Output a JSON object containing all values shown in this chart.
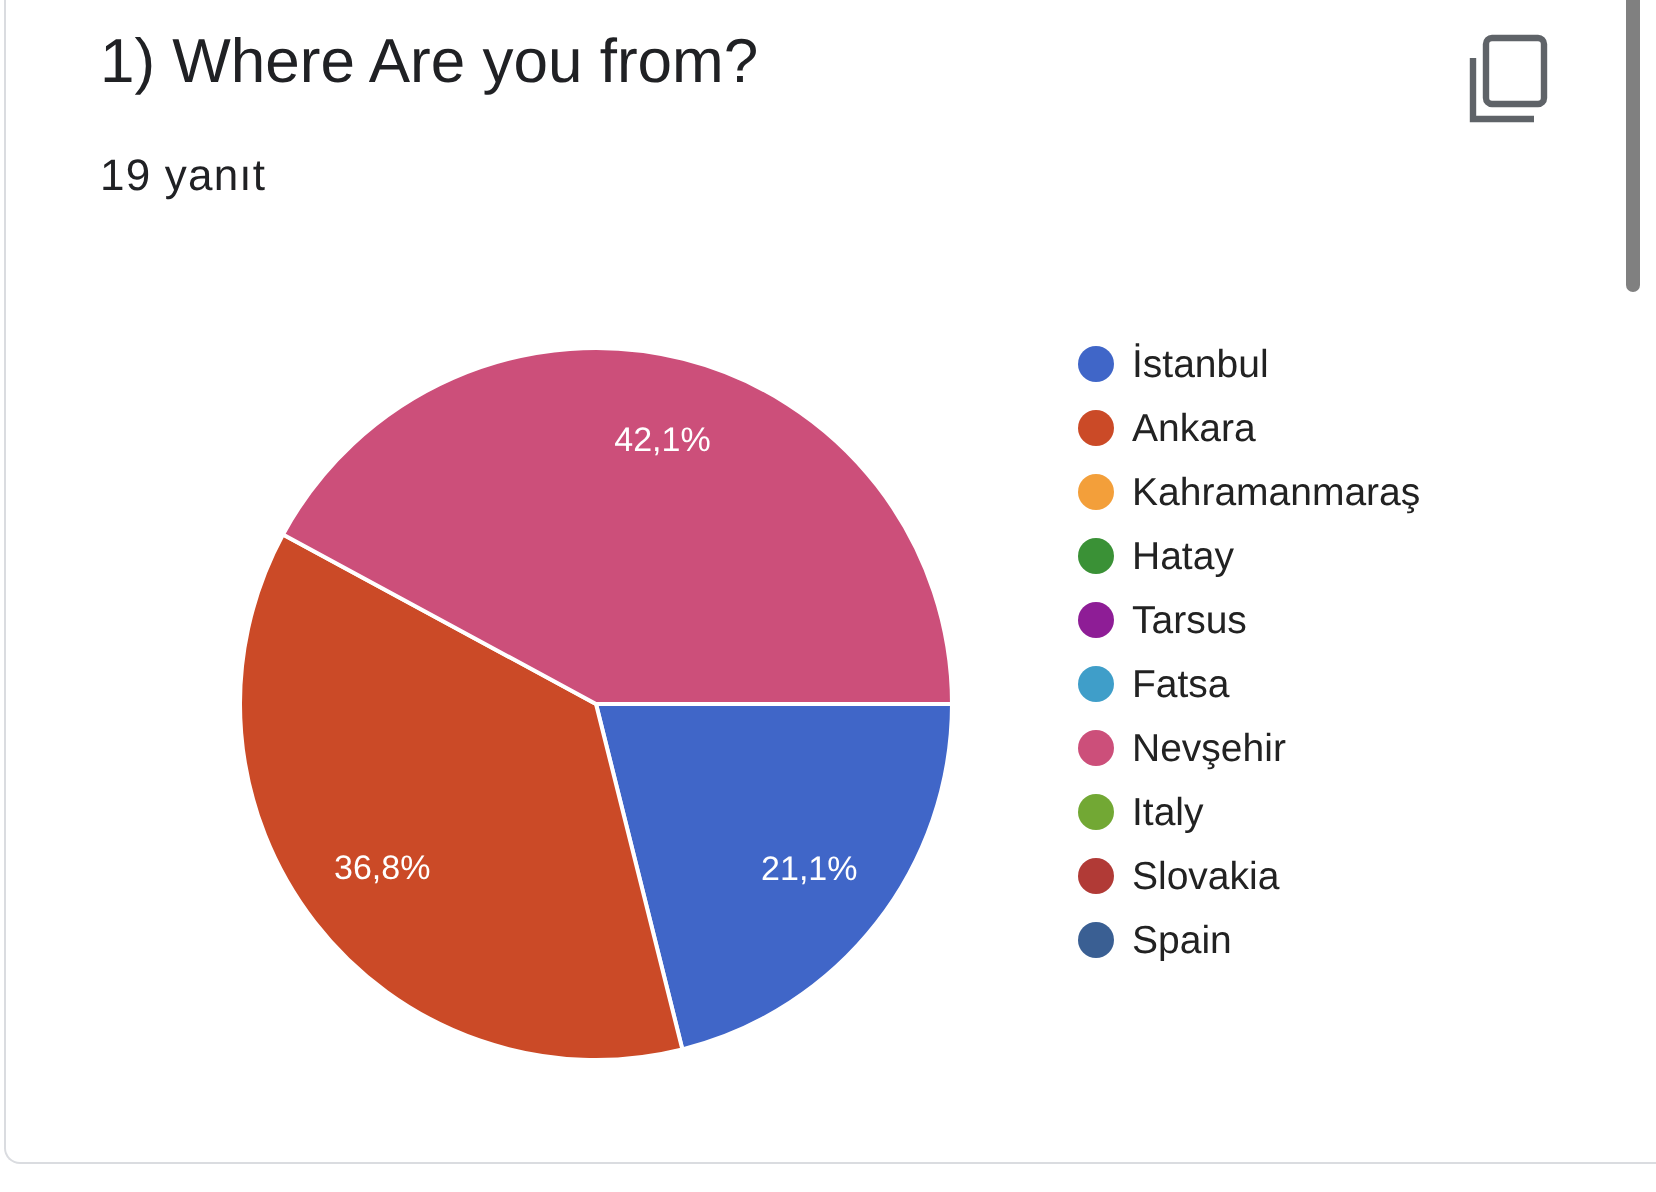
{
  "chart_data": {
    "type": "pie",
    "title": "1) Where Are you from?",
    "subtitle": "19 yanıt",
    "categories": [
      "İstanbul",
      "Ankara",
      "Kahramanmaraş",
      "Hatay",
      "Tarsus",
      "Fatsa",
      "Nevşehir",
      "Italy",
      "Slovakia",
      "Spain"
    ],
    "values": [
      21.1,
      36.8,
      0,
      0,
      0,
      0,
      42.1,
      0,
      0,
      0
    ],
    "colors": [
      "#4066c8",
      "#cb4a27",
      "#f39f3a",
      "#3a9136",
      "#8e1d96",
      "#3f9ec9",
      "#cc4f7a",
      "#72a834",
      "#b13a36",
      "#3a5f93"
    ],
    "value_labels": [
      "21,1%",
      "36,8%",
      null,
      null,
      null,
      null,
      "42,1%",
      null,
      null,
      null
    ],
    "legend": "right"
  }
}
